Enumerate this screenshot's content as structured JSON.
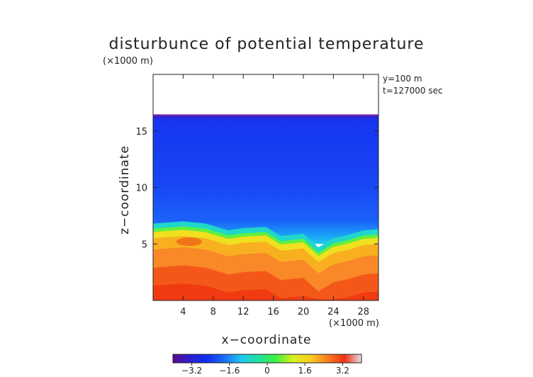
{
  "chart_data": {
    "type": "heatmap",
    "title": "disturbunce of potential temperature",
    "y_unit": "(×1000 m)",
    "x_unit": "(×1000 m)",
    "xlabel": "x−coordinate",
    "ylabel": "z−coordinate",
    "annotations": [
      "y=100 m",
      "t=127000 sec"
    ],
    "xlim": [
      0,
      30
    ],
    "ylim": [
      0,
      20
    ],
    "xticks": [
      4,
      8,
      12,
      16,
      20,
      24,
      28
    ],
    "xtick_labels": [
      "4",
      "8",
      "12",
      "16",
      "20",
      "24",
      "28"
    ],
    "yticks": [
      5,
      10,
      15
    ],
    "ytick_labels": [
      "5",
      "10",
      "15"
    ],
    "top_boundary_height": 16.4,
    "inversion_profile": [
      {
        "x": 0,
        "z": 5.9
      },
      {
        "x": 2,
        "z": 6.0
      },
      {
        "x": 4,
        "z": 6.1
      },
      {
        "x": 7,
        "z": 5.9
      },
      {
        "x": 8,
        "z": 5.7
      },
      {
        "x": 10,
        "z": 5.3
      },
      {
        "x": 12,
        "z": 5.5
      },
      {
        "x": 15,
        "z": 5.6
      },
      {
        "x": 17,
        "z": 4.8
      },
      {
        "x": 20,
        "z": 5.0
      },
      {
        "x": 22,
        "z": 3.8
      },
      {
        "x": 24,
        "z": 4.6
      },
      {
        "x": 26,
        "z": 4.9
      },
      {
        "x": 28,
        "z": 5.3
      },
      {
        "x": 30,
        "z": 5.4
      }
    ],
    "colorbar": {
      "range": [
        -4.0,
        4.0
      ],
      "ticks": [
        -3.2,
        -1.6,
        0,
        1.6,
        3.2
      ],
      "tick_labels": [
        "−3.2",
        "−1.6",
        "0",
        "1.6",
        "3.2"
      ],
      "colors": [
        "#5a0a8c",
        "#2a1fd0",
        "#1030f0",
        "#1a6cf8",
        "#20c8f0",
        "#20e0a0",
        "#40f040",
        "#d8f020",
        "#f8d020",
        "#f88020",
        "#f03010",
        "#e8e0e8"
      ]
    }
  }
}
